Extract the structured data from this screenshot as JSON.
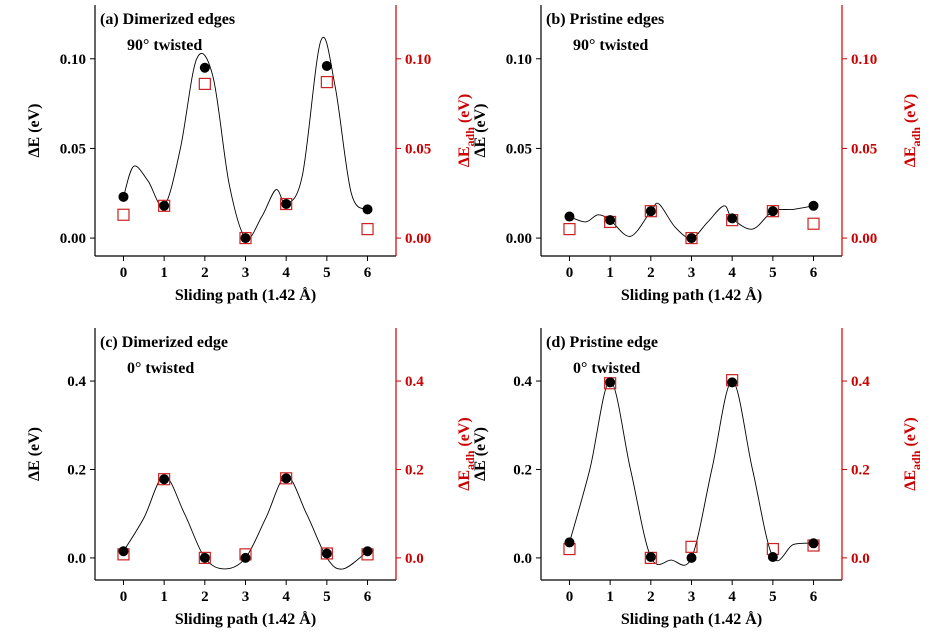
{
  "chart_data": [
    {
      "type": "scatter",
      "title": "(a) Dimerized edges",
      "subtitle": "90° twisted",
      "xlabel": "Sliding path (1.42 Å)",
      "ylabel": "ΔE (eV)",
      "ylabel_right": "ΔE",
      "ylabel_right_sub": "adh",
      "ylabel_right_unit": " (eV)",
      "x": [
        0,
        1,
        2,
        3,
        4,
        5,
        6
      ],
      "xticks": [
        "0",
        "1",
        "2",
        "3",
        "4",
        "5",
        "6"
      ],
      "xlim": [
        -0.7,
        6.7
      ],
      "ylim": [
        -0.01,
        0.13
      ],
      "yticks": [
        0.0,
        0.05,
        0.1
      ],
      "yticklabels": [
        "0.00",
        "0.05",
        "0.10"
      ],
      "series": [
        {
          "name": "ΔE",
          "marker": "filled-circle",
          "color": "#000000",
          "values": [
            0.023,
            0.018,
            0.095,
            0.0,
            0.019,
            0.096,
            0.016
          ]
        },
        {
          "name": "ΔEadh",
          "marker": "open-square",
          "color": "#cc2222",
          "values": [
            0.013,
            0.018,
            0.086,
            0.0,
            0.019,
            0.087,
            0.005
          ]
        }
      ],
      "fit_curve": {
        "x": [
          0,
          0.25,
          0.6,
          1,
          1.4,
          1.8,
          2.2,
          2.6,
          3,
          3.4,
          3.75,
          4,
          4.4,
          4.85,
          5.2,
          5.6,
          6
        ],
        "y": [
          0.023,
          0.04,
          0.032,
          0.018,
          0.05,
          0.1,
          0.09,
          0.03,
          0.0,
          0.012,
          0.027,
          0.019,
          0.035,
          0.11,
          0.085,
          0.025,
          0.016
        ]
      }
    },
    {
      "type": "scatter",
      "title": "(b) Pristine edges",
      "subtitle": "90° twisted",
      "xlabel": "Sliding path (1.42 Å)",
      "ylabel": "ΔE (eV)",
      "ylabel_right": "ΔE",
      "ylabel_right_sub": "adh",
      "ylabel_right_unit": " (eV)",
      "x": [
        0,
        1,
        2,
        3,
        4,
        5,
        6
      ],
      "xticks": [
        "0",
        "1",
        "2",
        "3",
        "4",
        "5",
        "6"
      ],
      "xlim": [
        -0.7,
        6.7
      ],
      "ylim": [
        -0.01,
        0.13
      ],
      "yticks": [
        0.0,
        0.05,
        0.1
      ],
      "yticklabels": [
        "0.00",
        "0.05",
        "0.10"
      ],
      "series": [
        {
          "name": "ΔE",
          "marker": "filled-circle",
          "color": "#000000",
          "values": [
            0.012,
            0.01,
            0.015,
            0.0,
            0.011,
            0.015,
            0.018
          ]
        },
        {
          "name": "ΔEadh",
          "marker": "open-square",
          "color": "#cc2222",
          "values": [
            0.005,
            0.009,
            0.015,
            0.0,
            0.01,
            0.015,
            0.008
          ]
        }
      ],
      "fit_curve": {
        "x": [
          0,
          0.4,
          0.7,
          1,
          1.5,
          2,
          2.2,
          2.6,
          3,
          3.4,
          3.8,
          4,
          4.5,
          5,
          5.5,
          6
        ],
        "y": [
          0.012,
          0.009,
          0.013,
          0.01,
          0.001,
          0.015,
          0.019,
          0.006,
          0.0,
          0.009,
          0.018,
          0.011,
          0.005,
          0.015,
          0.016,
          0.018
        ]
      }
    },
    {
      "type": "scatter",
      "title": "(c) Dimerized edge",
      "subtitle": "0° twisted",
      "xlabel": "Sliding path (1.42 Å)",
      "ylabel": "ΔE (eV)",
      "ylabel_right": "ΔE",
      "ylabel_right_sub": "adh",
      "ylabel_right_unit": " (eV)",
      "x": [
        0,
        1,
        2,
        3,
        4,
        5,
        6
      ],
      "xticks": [
        "0",
        "1",
        "2",
        "3",
        "4",
        "5",
        "6"
      ],
      "xlim": [
        -0.7,
        6.7
      ],
      "ylim": [
        -0.05,
        0.52
      ],
      "yticks": [
        0.0,
        0.2,
        0.4
      ],
      "yticklabels": [
        "0.0",
        "0.2",
        "0.4"
      ],
      "series": [
        {
          "name": "ΔE",
          "marker": "filled-circle",
          "color": "#000000",
          "values": [
            0.015,
            0.178,
            0.0,
            0.0,
            0.18,
            0.01,
            0.015
          ]
        },
        {
          "name": "ΔEadh",
          "marker": "open-square",
          "color": "#cc2222",
          "values": [
            0.008,
            0.178,
            0.0,
            0.008,
            0.18,
            0.01,
            0.008
          ]
        }
      ],
      "fit_curve": {
        "x": [
          0,
          0.5,
          1,
          1.5,
          2,
          2.5,
          3,
          3.5,
          4,
          4.5,
          5,
          5.4,
          6
        ],
        "y": [
          0.015,
          0.09,
          0.185,
          0.1,
          0.0,
          -0.025,
          0.0,
          0.09,
          0.185,
          0.1,
          0.0,
          -0.025,
          0.015
        ]
      }
    },
    {
      "type": "scatter",
      "title": "(d) Pristine edge",
      "subtitle": "0° twisted",
      "xlabel": "Sliding path (1.42 Å)",
      "ylabel": "ΔE (eV)",
      "ylabel_right": "ΔE",
      "ylabel_right_sub": "adh",
      "ylabel_right_unit": " (eV)",
      "x": [
        0,
        1,
        2,
        3,
        4,
        5,
        6
      ],
      "xticks": [
        "0",
        "1",
        "2",
        "3",
        "4",
        "5",
        "6"
      ],
      "xlim": [
        -0.7,
        6.7
      ],
      "ylim": [
        -0.05,
        0.52
      ],
      "yticks": [
        0.0,
        0.2,
        0.4
      ],
      "yticklabels": [
        "0.0",
        "0.2",
        "0.4"
      ],
      "series": [
        {
          "name": "ΔE",
          "marker": "filled-circle",
          "color": "#000000",
          "values": [
            0.035,
            0.397,
            0.002,
            0.0,
            0.397,
            0.002,
            0.033
          ]
        },
        {
          "name": "ΔEadh",
          "marker": "open-square",
          "color": "#cc2222",
          "values": [
            0.02,
            0.395,
            0.0,
            0.025,
            0.402,
            0.02,
            0.028
          ]
        }
      ],
      "fit_curve": {
        "x": [
          0,
          0.5,
          1,
          1.5,
          2,
          2.5,
          3,
          3.5,
          4,
          4.5,
          5,
          5.5,
          6
        ],
        "y": [
          0.035,
          0.2,
          0.4,
          0.2,
          0.002,
          -0.005,
          0.0,
          0.2,
          0.4,
          0.2,
          0.002,
          0.03,
          0.033
        ]
      }
    }
  ]
}
